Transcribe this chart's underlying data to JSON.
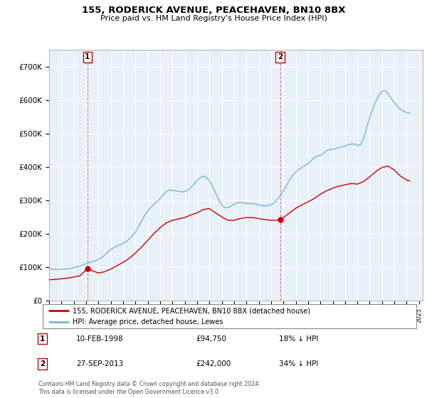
{
  "title": "155, RODERICK AVENUE, PEACEHAVEN, BN10 8BX",
  "subtitle": "Price paid vs. HM Land Registry's House Price Index (HPI)",
  "ylim": [
    0,
    750000
  ],
  "yticks": [
    0,
    100000,
    200000,
    300000,
    400000,
    500000,
    600000,
    700000
  ],
  "ytick_labels": [
    "£0",
    "£100K",
    "£200K",
    "£300K",
    "£400K",
    "£500K",
    "£600K",
    "£700K"
  ],
  "hpi_color": "#7ab5d8",
  "price_color": "#cc0000",
  "plot_bg_color": "#e8f0f8",
  "marker1_date": 1998.11,
  "marker1_price": 94750,
  "marker1_label": "1",
  "marker1_text": "10-FEB-1998",
  "marker1_price_text": "£94,750",
  "marker1_hpi_text": "18% ↓ HPI",
  "marker2_date": 2013.74,
  "marker2_price": 242000,
  "marker2_label": "2",
  "marker2_text": "27-SEP-2013",
  "marker2_price_text": "£242,000",
  "marker2_hpi_text": "34% ↓ HPI",
  "legend_line1": "155, RODERICK AVENUE, PEACEHAVEN, BN10 8BX (detached house)",
  "legend_line2": "HPI: Average price, detached house, Lewes",
  "footer": "Contains HM Land Registry data © Crown copyright and database right 2024.\nThis data is licensed under the Open Government Licence v3.0.",
  "hpi_data": {
    "years": [
      1995.0,
      1995.25,
      1995.5,
      1995.75,
      1996.0,
      1996.25,
      1996.5,
      1996.75,
      1997.0,
      1997.25,
      1997.5,
      1997.75,
      1998.0,
      1998.25,
      1998.5,
      1998.75,
      1999.0,
      1999.25,
      1999.5,
      1999.75,
      2000.0,
      2000.25,
      2000.5,
      2000.75,
      2001.0,
      2001.25,
      2001.5,
      2001.75,
      2002.0,
      2002.25,
      2002.5,
      2002.75,
      2003.0,
      2003.25,
      2003.5,
      2003.75,
      2004.0,
      2004.25,
      2004.5,
      2004.75,
      2005.0,
      2005.25,
      2005.5,
      2005.75,
      2006.0,
      2006.25,
      2006.5,
      2006.75,
      2007.0,
      2007.25,
      2007.5,
      2007.75,
      2008.0,
      2008.25,
      2008.5,
      2008.75,
      2009.0,
      2009.25,
      2009.5,
      2009.75,
      2010.0,
      2010.25,
      2010.5,
      2010.75,
      2011.0,
      2011.25,
      2011.5,
      2011.75,
      2012.0,
      2012.25,
      2012.5,
      2012.75,
      2013.0,
      2013.25,
      2013.5,
      2013.75,
      2014.0,
      2014.25,
      2014.5,
      2014.75,
      2015.0,
      2015.25,
      2015.5,
      2015.75,
      2016.0,
      2016.25,
      2016.5,
      2016.75,
      2017.0,
      2017.25,
      2017.5,
      2017.75,
      2018.0,
      2018.25,
      2018.5,
      2018.75,
      2019.0,
      2019.25,
      2019.5,
      2019.75,
      2020.0,
      2020.25,
      2020.5,
      2020.75,
      2021.0,
      2021.25,
      2021.5,
      2021.75,
      2022.0,
      2022.25,
      2022.5,
      2022.75,
      2023.0,
      2023.25,
      2023.5,
      2023.75,
      2024.0,
      2024.25
    ],
    "values": [
      95000,
      94000,
      93500,
      93000,
      93500,
      94000,
      95000,
      96000,
      98000,
      100000,
      103000,
      107000,
      110000,
      113000,
      116000,
      119000,
      122000,
      128000,
      136000,
      145000,
      153000,
      158000,
      163000,
      167000,
      170000,
      176000,
      184000,
      194000,
      205000,
      220000,
      238000,
      255000,
      268000,
      278000,
      288000,
      296000,
      305000,
      316000,
      326000,
      330000,
      330000,
      328000,
      326000,
      325000,
      326000,
      330000,
      338000,
      348000,
      358000,
      368000,
      372000,
      368000,
      358000,
      342000,
      322000,
      302000,
      285000,
      278000,
      278000,
      282000,
      288000,
      292000,
      294000,
      292000,
      290000,
      290000,
      290000,
      288000,
      286000,
      284000,
      283000,
      284000,
      286000,
      292000,
      302000,
      314000,
      328000,
      344000,
      360000,
      374000,
      384000,
      392000,
      398000,
      404000,
      410000,
      418000,
      428000,
      432000,
      434000,
      440000,
      448000,
      452000,
      452000,
      454000,
      458000,
      460000,
      462000,
      466000,
      468000,
      468000,
      464000,
      466000,
      484000,
      516000,
      548000,
      574000,
      596000,
      614000,
      626000,
      628000,
      618000,
      604000,
      592000,
      580000,
      572000,
      566000,
      562000,
      560000
    ]
  },
  "price_data": {
    "years": [
      1995.0,
      1995.5,
      1996.0,
      1996.5,
      1997.0,
      1997.5,
      1998.11,
      1999.0,
      1999.5,
      2000.0,
      2000.5,
      2001.0,
      2001.5,
      2002.0,
      2002.5,
      2003.0,
      2003.5,
      2004.0,
      2004.5,
      2005.0,
      2005.5,
      2006.0,
      2006.5,
      2007.0,
      2007.5,
      2008.0,
      2008.5,
      2009.0,
      2009.5,
      2010.0,
      2010.5,
      2011.0,
      2011.5,
      2012.0,
      2012.5,
      2013.0,
      2013.5,
      2013.74,
      2014.0,
      2014.5,
      2015.0,
      2015.5,
      2016.0,
      2016.5,
      2017.0,
      2017.5,
      2018.0,
      2018.5,
      2019.0,
      2019.5,
      2020.0,
      2020.5,
      2021.0,
      2021.5,
      2022.0,
      2022.5,
      2023.0,
      2023.5,
      2024.0,
      2024.25
    ],
    "values": [
      62000,
      63000,
      65000,
      67000,
      70000,
      74000,
      94750,
      82000,
      86000,
      94000,
      104000,
      114000,
      126000,
      142000,
      160000,
      180000,
      200000,
      218000,
      232000,
      240000,
      244000,
      248000,
      256000,
      262000,
      272000,
      275000,
      262000,
      250000,
      240000,
      240000,
      245000,
      248000,
      248000,
      245000,
      242000,
      240000,
      240000,
      242000,
      248000,
      262000,
      276000,
      286000,
      295000,
      305000,
      318000,
      328000,
      336000,
      342000,
      346000,
      350000,
      348000,
      356000,
      370000,
      386000,
      398000,
      402000,
      390000,
      372000,
      360000,
      358000
    ]
  }
}
